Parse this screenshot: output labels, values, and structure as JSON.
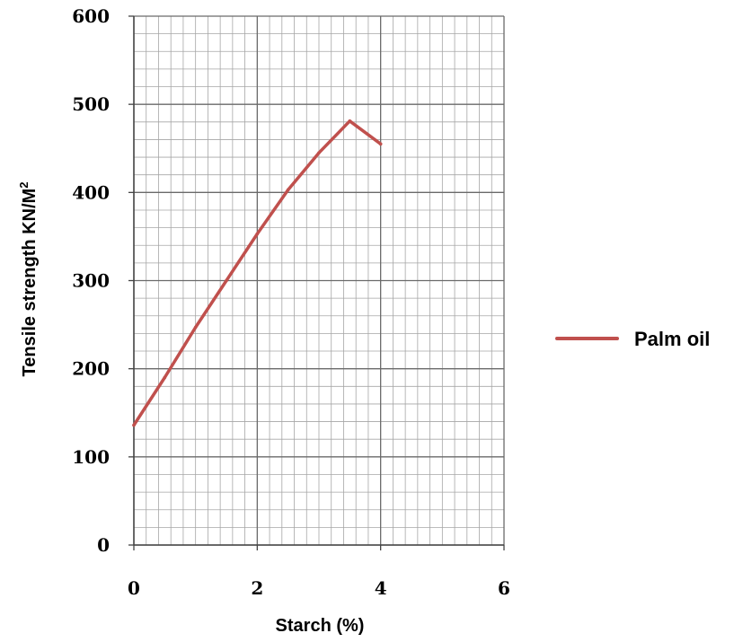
{
  "chart_data": {
    "type": "line",
    "xlabel": "Starch (%)",
    "ylabel": "Tensile strength KN/M",
    "ylabel_superscript": "2",
    "xlim": [
      0,
      6
    ],
    "ylim": [
      0,
      600
    ],
    "x_ticks": [
      "0",
      "2",
      "4",
      "6"
    ],
    "y_ticks": [
      "0",
      "100",
      "200",
      "300",
      "400",
      "500",
      "600"
    ],
    "major_grid": true,
    "minor_grid": true,
    "legend_position": "right",
    "series": [
      {
        "name": "Palm oil",
        "color": "#c0504d",
        "x": [
          0,
          0.5,
          1.0,
          1.5,
          2.0,
          2.5,
          3.0,
          3.5,
          4.0
        ],
        "y": [
          136,
          190,
          247,
          300,
          353,
          403,
          445,
          481,
          455
        ]
      }
    ]
  }
}
